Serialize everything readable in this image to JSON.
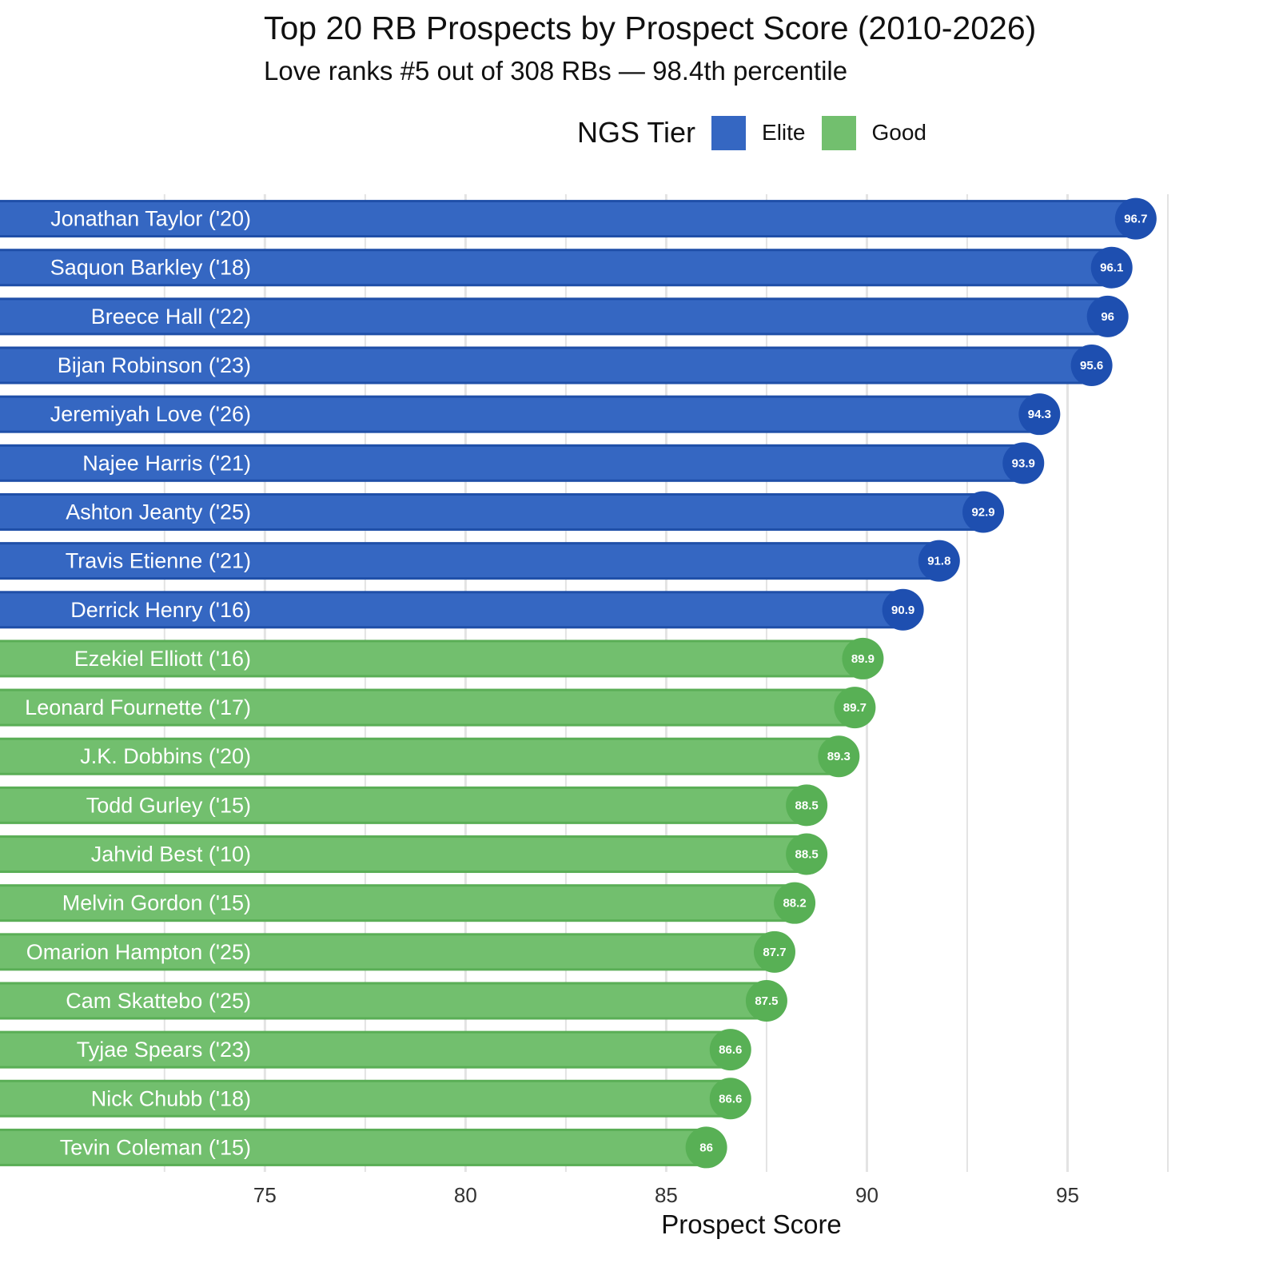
{
  "chart_data": {
    "type": "bar",
    "orientation": "horizontal",
    "title": "Top 20 RB Prospects by Prospect Score (2010-2026)",
    "subtitle": "Love ranks #5 out of 308 RBs — 98.4th percentile",
    "xlabel": "Prospect Score",
    "ylabel": "",
    "xlim": [
      68.4,
      97.5
    ],
    "xticks": [
      "75",
      "80",
      "85",
      "90",
      "95"
    ],
    "xtick_values": [
      75,
      80,
      85,
      90,
      95
    ],
    "grid": true,
    "legend": {
      "title": "NGS Tier",
      "position": "top",
      "entries": [
        {
          "label": "Elite",
          "color": "#3567c2"
        },
        {
          "label": "Good",
          "color": "#72bf6e"
        }
      ]
    },
    "tier_colors": {
      "Elite": {
        "bar": "#3567c2",
        "edge": "#1f4fa8",
        "point": "#1e4fb0"
      },
      "Good": {
        "bar": "#72bf6e",
        "edge": "#5aae56",
        "point": "#58b055"
      }
    },
    "categories": [
      "Jonathan Taylor ('20)",
      "Saquon Barkley ('18)",
      "Breece Hall ('22)",
      "Bijan Robinson ('23)",
      "Jeremiyah Love ('26)",
      "Najee Harris ('21)",
      "Ashton Jeanty ('25)",
      "Travis Etienne ('21)",
      "Derrick Henry ('16)",
      "Ezekiel Elliott ('16)",
      "Leonard Fournette ('17)",
      "J.K. Dobbins ('20)",
      "Todd Gurley ('15)",
      "Jahvid Best ('10)",
      "Melvin Gordon ('15)",
      "Omarion Hampton ('25)",
      "Cam Skattebo ('25)",
      "Tyjae Spears ('23)",
      "Nick Chubb ('18)",
      "Tevin Coleman ('15)"
    ],
    "values": [
      96.7,
      96.1,
      96,
      95.6,
      94.3,
      93.9,
      92.9,
      91.8,
      90.9,
      89.9,
      89.7,
      89.3,
      88.5,
      88.5,
      88.2,
      87.7,
      87.5,
      86.6,
      86.6,
      86
    ],
    "value_labels": [
      "96.7",
      "96.1",
      "96",
      "95.6",
      "94.3",
      "93.9",
      "92.9",
      "91.8",
      "90.9",
      "89.9",
      "89.7",
      "89.3",
      "88.5",
      "88.5",
      "88.2",
      "87.7",
      "87.5",
      "86.6",
      "86.6",
      "86"
    ],
    "tiers": [
      "Elite",
      "Elite",
      "Elite",
      "Elite",
      "Elite",
      "Elite",
      "Elite",
      "Elite",
      "Elite",
      "Good",
      "Good",
      "Good",
      "Good",
      "Good",
      "Good",
      "Good",
      "Good",
      "Good",
      "Good",
      "Good"
    ]
  }
}
